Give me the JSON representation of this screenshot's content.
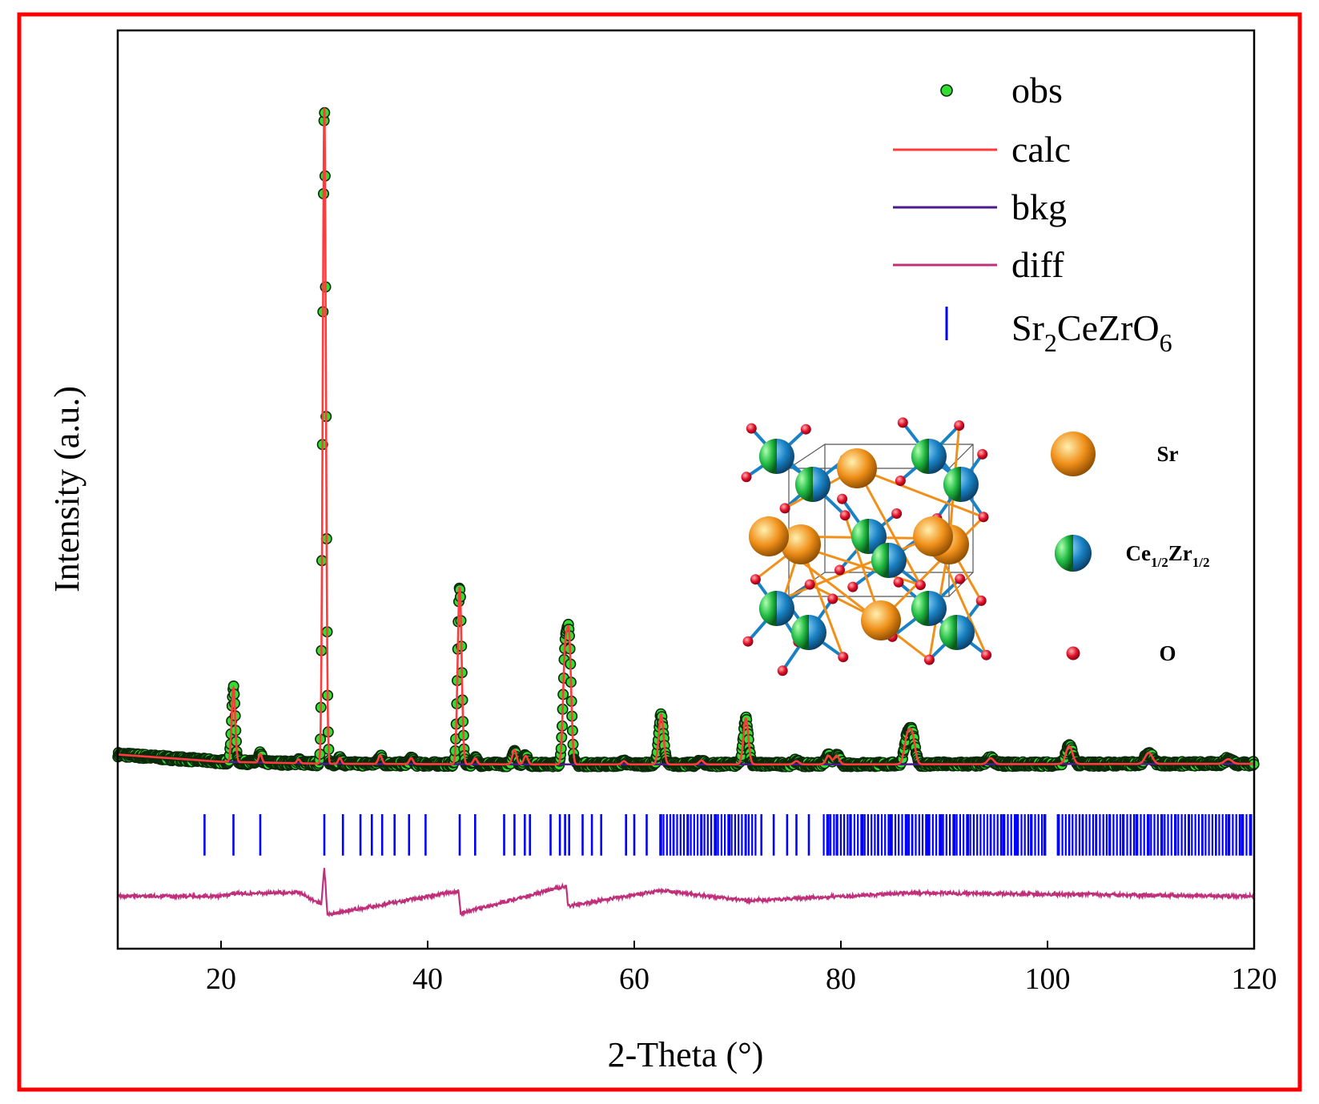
{
  "colors": {
    "frame": "#ff0000",
    "obs_fill": "#33dd33",
    "obs_edge": "#0a2a0a",
    "calc": "#ff3b3b",
    "bkg": "#4b1a8c",
    "diff": "#c0307a",
    "ticks": "#0000ff",
    "sr": "#f0901a",
    "ce": "#22bb44",
    "zr": "#1a82c4",
    "o": "#e0102a"
  },
  "chart_data": {
    "type": "line",
    "title": "",
    "xlabel": "2-Theta (°)",
    "ylabel": "Intensity (a.u.)",
    "xlim": [
      10,
      120
    ],
    "ylim": [
      -28,
      112
    ],
    "xticks": [
      20,
      40,
      60,
      80,
      100,
      120
    ],
    "xtick_labels": [
      "20",
      "40",
      "60",
      "80",
      "100",
      "120"
    ],
    "y_tick_labels_shown": false,
    "legend_position": "top-right",
    "legend": [
      {
        "key": "obs",
        "label": "obs",
        "style": "marker"
      },
      {
        "key": "calc",
        "label": "calc",
        "style": "line"
      },
      {
        "key": "bkg",
        "label": "bkg",
        "style": "line"
      },
      {
        "key": "diff",
        "label": "diff",
        "style": "line"
      },
      {
        "key": "ticks",
        "label": "Sr",
        "sub": "2",
        "label2": "CeZrO",
        "sub2": "6",
        "style": "vtick"
      }
    ],
    "background": {
      "x": [
        10,
        20,
        30,
        50,
        80,
        120
      ],
      "y": [
        1.6,
        0.5,
        0.2,
        0.1,
        0.1,
        0.2
      ]
    },
    "peaks": [
      {
        "pos": 21.2,
        "height": 11.3,
        "width": 0.17
      },
      {
        "pos": 23.8,
        "height": 1.3,
        "width": 0.15
      },
      {
        "pos": 27.5,
        "height": 0.6,
        "width": 0.15
      },
      {
        "pos": 30.0,
        "height": 100.0,
        "width": 0.15
      },
      {
        "pos": 31.5,
        "height": 0.9,
        "width": 0.15
      },
      {
        "pos": 35.4,
        "height": 1.3,
        "width": 0.18
      },
      {
        "pos": 38.4,
        "height": 0.9,
        "width": 0.18
      },
      {
        "pos": 43.1,
        "height": 27.0,
        "width": 0.19
      },
      {
        "pos": 44.6,
        "height": 0.9,
        "width": 0.18
      },
      {
        "pos": 48.4,
        "height": 2.2,
        "width": 0.2
      },
      {
        "pos": 49.5,
        "height": 1.3,
        "width": 0.2
      },
      {
        "pos": 53.3,
        "height": 16.0,
        "width": 0.2
      },
      {
        "pos": 53.7,
        "height": 18.0,
        "width": 0.2
      },
      {
        "pos": 59.0,
        "height": 0.5,
        "width": 0.2
      },
      {
        "pos": 62.6,
        "height": 7.6,
        "width": 0.23
      },
      {
        "pos": 66.5,
        "height": 0.6,
        "width": 0.22
      },
      {
        "pos": 70.8,
        "height": 7.0,
        "width": 0.24
      },
      {
        "pos": 75.7,
        "height": 0.5,
        "width": 0.25
      },
      {
        "pos": 78.8,
        "height": 1.3,
        "width": 0.25
      },
      {
        "pos": 79.6,
        "height": 1.3,
        "width": 0.25
      },
      {
        "pos": 86.4,
        "height": 3.8,
        "width": 0.28
      },
      {
        "pos": 86.9,
        "height": 4.2,
        "width": 0.28
      },
      {
        "pos": 94.5,
        "height": 0.9,
        "width": 0.3
      },
      {
        "pos": 102.1,
        "height": 2.7,
        "width": 0.32
      },
      {
        "pos": 109.8,
        "height": 1.7,
        "width": 0.35
      },
      {
        "pos": 117.5,
        "height": 0.7,
        "width": 0.35
      }
    ],
    "tick_band": {
      "y_top": -7.5,
      "y_bottom": -13.8
    },
    "bragg_reflections": [
      18.4,
      21.2,
      23.8,
      30.0,
      31.8,
      33.5,
      34.6,
      35.6,
      36.8,
      38.2,
      39.8,
      43.1,
      44.6,
      47.4,
      48.4,
      49.4,
      49.9,
      51.9,
      52.8,
      53.3,
      53.7,
      55.0,
      55.9,
      56.8,
      59.2,
      60.0,
      61.2,
      62.6,
      63.8,
      65.2,
      66.5,
      67.9,
      69.2,
      70.8,
      72.3,
      73.5,
      74.8,
      75.7,
      76.9,
      78.8,
      79.6,
      80.9,
      82.1,
      83.6,
      84.8,
      86.4,
      86.9,
      88.4,
      89.7,
      91.0,
      92.3,
      94.5,
      95.7,
      97.0,
      98.4,
      99.7,
      101.0,
      102.1,
      103.4,
      104.7,
      106.0,
      107.3,
      108.6,
      109.8,
      111.1,
      112.4,
      113.7,
      115.0,
      116.3,
      117.5,
      118.8,
      119.7
    ],
    "difference_curve": {
      "offset": -20.0,
      "x": [
        10,
        20,
        21.2,
        27.5,
        29.7,
        30.0,
        30.3,
        43.0,
        43.2,
        53.4,
        53.6,
        62.6,
        70.8,
        86.6,
        120
      ],
      "y": [
        0,
        0,
        0.4,
        0.6,
        -1.2,
        4.5,
        -2.8,
        0.8,
        -2.6,
        1.6,
        -1.5,
        0.9,
        -0.7,
        0.5,
        0
      ]
    },
    "inset_legend": [
      {
        "key": "sr",
        "label": "Sr"
      },
      {
        "key": "cezr",
        "label": "Ce",
        "sub": "1/2",
        "label2": "Zr",
        "sub2": "1/2"
      },
      {
        "key": "o",
        "label": "O"
      }
    ]
  }
}
